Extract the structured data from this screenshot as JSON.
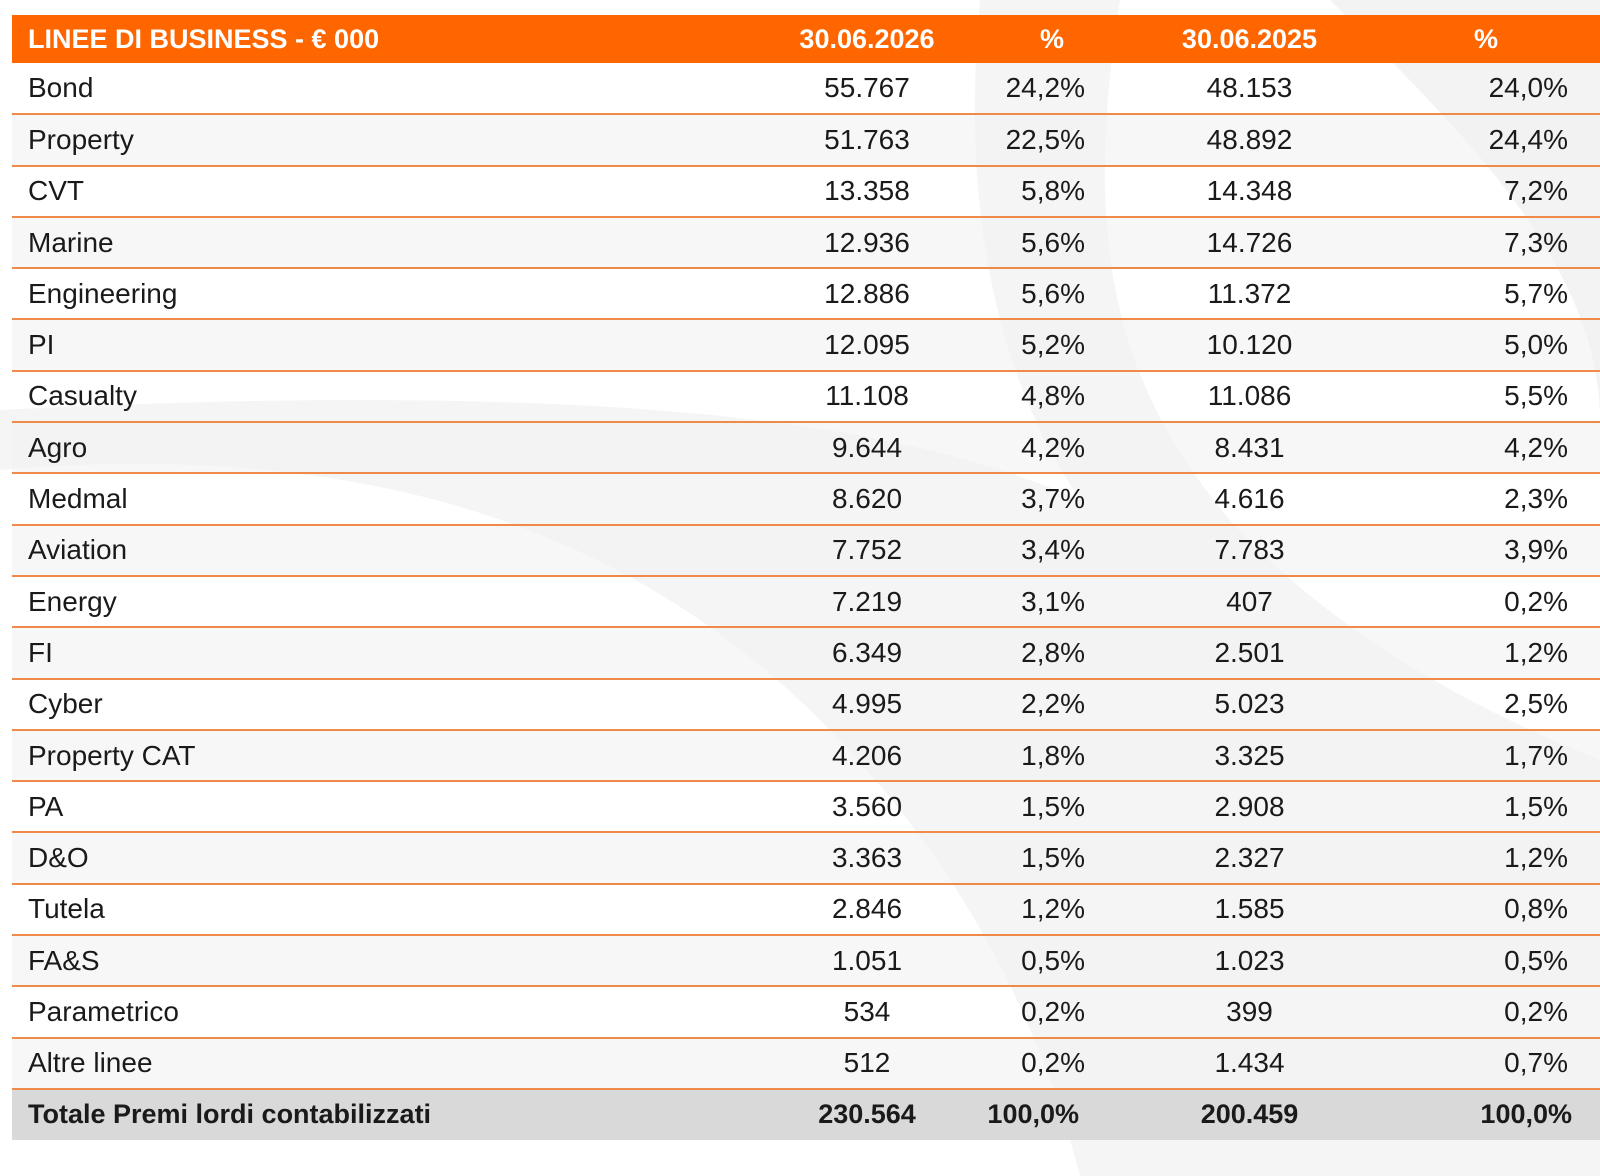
{
  "table": {
    "headers": {
      "label": "LINEE DI BUSINESS - € 000",
      "value_2026": "30.06.2026",
      "pct_2026": "%",
      "value_2025": "30.06.2025",
      "pct_2025": "%"
    },
    "rows": [
      {
        "label": "Bond",
        "v2026": "55.767",
        "p2026": "24,2%",
        "v2025": "48.153",
        "p2025": "24,0%"
      },
      {
        "label": "Property",
        "v2026": "51.763",
        "p2026": "22,5%",
        "v2025": "48.892",
        "p2025": "24,4%"
      },
      {
        "label": "CVT",
        "v2026": "13.358",
        "p2026": "5,8%",
        "v2025": "14.348",
        "p2025": "7,2%"
      },
      {
        "label": "Marine",
        "v2026": "12.936",
        "p2026": "5,6%",
        "v2025": "14.726",
        "p2025": "7,3%"
      },
      {
        "label": "Engineering",
        "v2026": "12.886",
        "p2026": "5,6%",
        "v2025": "11.372",
        "p2025": "5,7%"
      },
      {
        "label": "PI",
        "v2026": "12.095",
        "p2026": "5,2%",
        "v2025": "10.120",
        "p2025": "5,0%"
      },
      {
        "label": "Casualty",
        "v2026": "11.108",
        "p2026": "4,8%",
        "v2025": "11.086",
        "p2025": "5,5%"
      },
      {
        "label": "Agro",
        "v2026": "9.644",
        "p2026": "4,2%",
        "v2025": "8.431",
        "p2025": "4,2%"
      },
      {
        "label": "Medmal",
        "v2026": "8.620",
        "p2026": "3,7%",
        "v2025": "4.616",
        "p2025": "2,3%"
      },
      {
        "label": "Aviation",
        "v2026": "7.752",
        "p2026": "3,4%",
        "v2025": "7.783",
        "p2025": "3,9%"
      },
      {
        "label": "Energy",
        "v2026": "7.219",
        "p2026": "3,1%",
        "v2025": "407",
        "p2025": "0,2%"
      },
      {
        "label": "FI",
        "v2026": "6.349",
        "p2026": "2,8%",
        "v2025": "2.501",
        "p2025": "1,2%"
      },
      {
        "label": "Cyber",
        "v2026": "4.995",
        "p2026": "2,2%",
        "v2025": "5.023",
        "p2025": "2,5%"
      },
      {
        "label": "Property CAT",
        "v2026": "4.206",
        "p2026": "1,8%",
        "v2025": "3.325",
        "p2025": "1,7%"
      },
      {
        "label": "PA",
        "v2026": "3.560",
        "p2026": "1,5%",
        "v2025": "2.908",
        "p2025": "1,5%"
      },
      {
        "label": "D&O",
        "v2026": "3.363",
        "p2026": "1,5%",
        "v2025": "2.327",
        "p2025": "1,2%"
      },
      {
        "label": "Tutela",
        "v2026": "2.846",
        "p2026": "1,2%",
        "v2025": "1.585",
        "p2025": "0,8%"
      },
      {
        "label": "FA&S",
        "v2026": "1.051",
        "p2026": "0,5%",
        "v2025": "1.023",
        "p2025": "0,5%"
      },
      {
        "label": "Parametrico",
        "v2026": "534",
        "p2026": "0,2%",
        "v2025": "399",
        "p2025": "0,2%"
      },
      {
        "label": "Altre linee",
        "v2026": "512",
        "p2026": "0,2%",
        "v2025": "1.434",
        "p2025": "0,7%"
      }
    ],
    "total": {
      "label": "Totale Premi lordi contabilizzati",
      "v2026": "230.564",
      "p2026": "100,0%",
      "v2025": "200.459",
      "p2025": "100,0%"
    }
  },
  "colors": {
    "header_bg": "#ff6600",
    "row_border": "#f08a4b",
    "total_bg": "#d9d9d9"
  }
}
